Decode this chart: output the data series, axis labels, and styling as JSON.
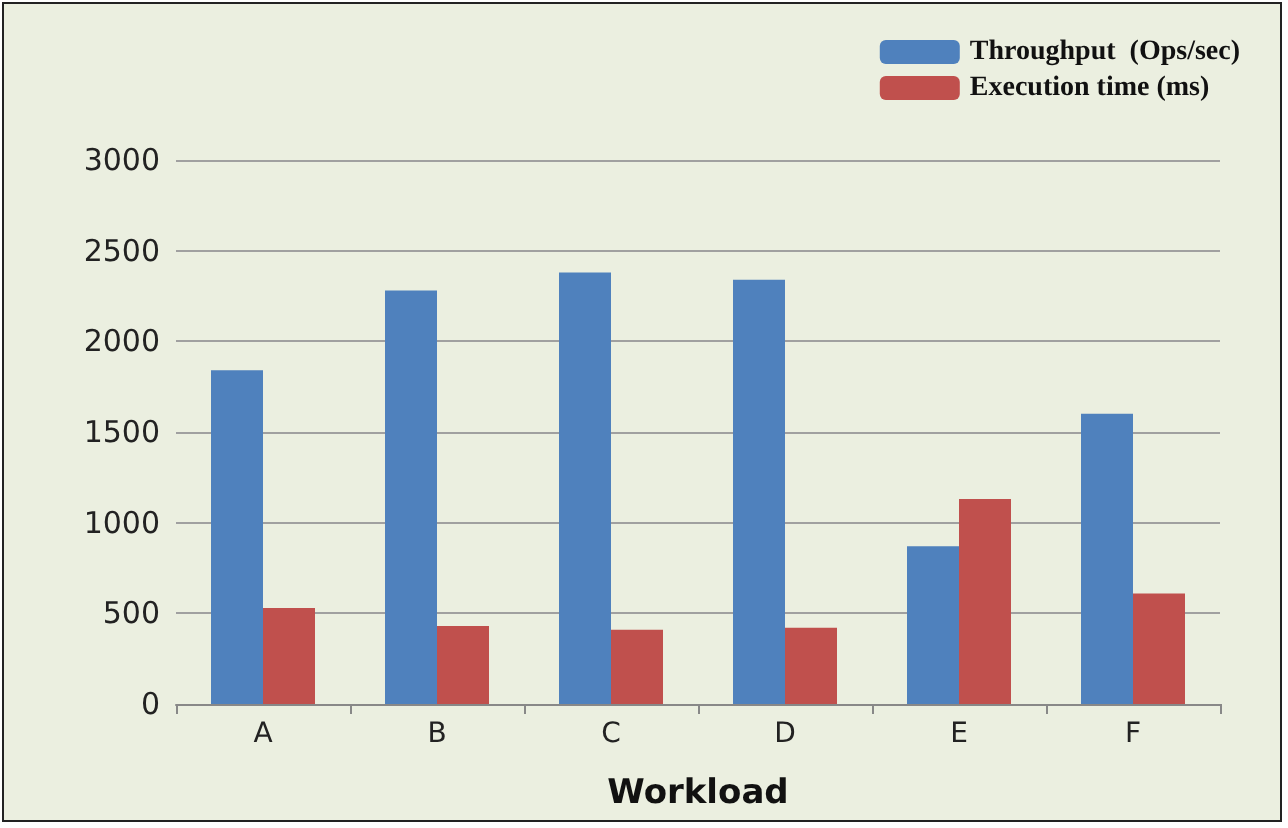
{
  "chart_data": {
    "type": "bar",
    "xlabel": "Workload",
    "categories": [
      "A",
      "B",
      "C",
      "D",
      "E",
      "F"
    ],
    "series": [
      {
        "name": "Throughput  (Ops/sec)",
        "color": "#4f81bd",
        "values": [
          1840,
          2280,
          2380,
          2340,
          870,
          1600
        ]
      },
      {
        "name": "Execution time (ms)",
        "color": "#c0504d",
        "values": [
          530,
          430,
          410,
          420,
          1130,
          610
        ]
      }
    ],
    "ylim": [
      0,
      3000
    ],
    "yticks": [
      0,
      500,
      1000,
      1500,
      2000,
      2500,
      3000
    ],
    "grid": "y",
    "legend": "top right"
  }
}
